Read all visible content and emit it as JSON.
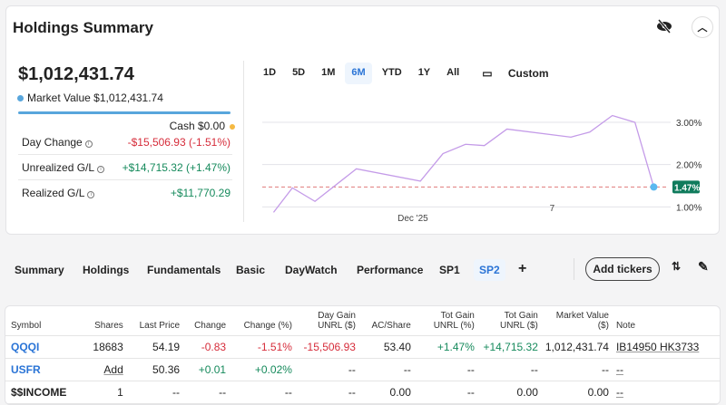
{
  "header": {
    "title": "Holdings Summary",
    "hide_icon": "eye-slash-icon",
    "collapse_icon": "chevron-up-icon"
  },
  "summary": {
    "total": "$1,012,431.74",
    "market_value": "Market Value $1,012,431.74",
    "cash": "Cash $0.00",
    "stats": [
      {
        "label": "Day Change",
        "value": "-$15,506.93 (-1.51%)",
        "color": "red"
      },
      {
        "label": "Unrealized G/L",
        "value": "+$14,715.32 (+1.47%)",
        "color": "green"
      },
      {
        "label": "Realized G/L",
        "value": "+$11,770.29",
        "color": "green"
      }
    ],
    "market_value_color": "#58a6dc",
    "cash_color": "#f5b942"
  },
  "ranges": [
    "1D",
    "5D",
    "1M",
    "6M",
    "YTD",
    "1Y",
    "All"
  ],
  "range_active": "6M",
  "custom_label": "Custom",
  "chart_data": {
    "type": "line",
    "series": [
      {
        "name": "Unrealized G/L %",
        "x": [
          -37,
          -32,
          -26,
          -15,
          2,
          8,
          14,
          19,
          25,
          42,
          47,
          53,
          59,
          64
        ],
        "y": [
          0.87,
          1.45,
          1.13,
          1.9,
          1.61,
          2.26,
          2.48,
          2.45,
          2.84,
          2.65,
          2.77,
          3.16,
          3.0,
          1.47
        ]
      }
    ],
    "yticks": [
      "3.00%",
      "2.00%",
      "1.00%"
    ],
    "ytick_values": [
      3,
      2,
      1
    ],
    "xticks": [
      {
        "label": "Dec '25",
        "x": 0
      },
      {
        "label": "7",
        "x": 37
      }
    ],
    "reference_value": 1.47,
    "reference_label": "1.47%",
    "ylim": [
      0.6,
      3.6
    ],
    "xlim": [
      -40,
      68
    ],
    "line_color": "#c49be8",
    "ref_color": "#e07b7b",
    "badge_color": "#0f7b5c"
  },
  "tabs": [
    "Summary",
    "Holdings",
    "Fundamentals",
    "Basic",
    "DayWatch",
    "Performance",
    "SP1",
    "SP2"
  ],
  "tab_active": "SP2",
  "add_tickers": "Add tickers",
  "table": {
    "headers": [
      "Symbol",
      "Shares",
      "Last Price",
      "Change",
      "Change (%)",
      "Day Gain UNRL ($)",
      "AC/Share",
      "Tot Gain UNRL (%)",
      "Tot Gain UNRL ($)",
      "Market Value ($)",
      "Note"
    ],
    "rows": [
      [
        "QQQI",
        "18683",
        "54.19",
        "-0.83",
        "-1.51%",
        "-15,506.93",
        "53.40",
        "+1.47%",
        "+14,715.32",
        "1,012,431.74",
        "IB14950 HK3733"
      ],
      [
        "USFR",
        "Add",
        "50.36",
        "+0.01",
        "+0.02%",
        "--",
        "--",
        "--",
        "--",
        "--",
        "--"
      ],
      [
        "$$INCOME",
        "1",
        "--",
        "--",
        "--",
        "--",
        "0.00",
        "--",
        "0.00",
        "0.00",
        "--"
      ]
    ]
  }
}
